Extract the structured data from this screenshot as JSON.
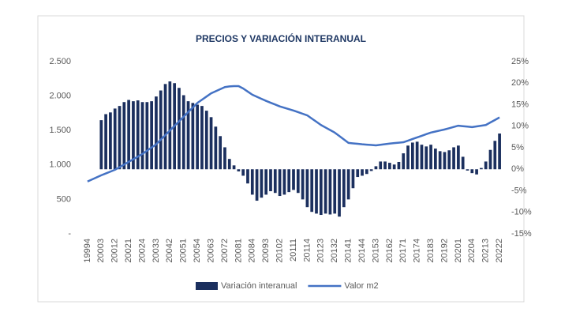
{
  "chart_data": {
    "type": "combo",
    "title": "PRECIOS Y VARIACIÓN INTERANUAL",
    "categories": [
      "19994",
      null,
      null,
      "20003",
      null,
      null,
      "20012",
      null,
      null,
      "20021",
      null,
      null,
      "20024",
      null,
      null,
      "20033",
      null,
      null,
      "20042",
      null,
      null,
      "20051",
      null,
      null,
      "20054",
      null,
      null,
      "20063",
      null,
      null,
      "20072",
      null,
      null,
      "20081",
      null,
      null,
      "20084",
      null,
      null,
      "20093",
      null,
      null,
      "20102",
      null,
      null,
      "20111",
      null,
      null,
      "20114",
      null,
      null,
      "20123",
      null,
      null,
      "20132",
      null,
      null,
      "20141",
      null,
      null,
      "20144",
      null,
      null,
      "20153",
      null,
      null,
      "20162",
      null,
      null,
      "20171",
      null,
      null,
      "20174",
      null,
      null,
      "20183",
      null,
      null,
      "20192",
      null,
      null,
      "20201",
      null,
      null,
      "20204",
      null,
      null,
      "20213",
      null,
      null,
      "20222"
    ],
    "series": [
      {
        "name": "Variación interanual",
        "type": "bar",
        "axis": "y2",
        "color": "#1b2f5e",
        "values": [
          null,
          null,
          null,
          11.4,
          12.8,
          13.2,
          14.1,
          14.7,
          15.6,
          16.1,
          15.8,
          16.0,
          15.6,
          15.6,
          15.8,
          16.9,
          18.3,
          19.8,
          20.4,
          20.0,
          18.9,
          17.2,
          15.8,
          15.4,
          15.0,
          14.7,
          13.6,
          12.1,
          9.9,
          7.7,
          5.1,
          2.4,
          0.9,
          -0.5,
          -1.5,
          -3.3,
          -5.9,
          -7.3,
          -6.6,
          -5.9,
          -5.1,
          -5.5,
          -6.2,
          -5.9,
          -5.3,
          -4.8,
          -5.5,
          -7.0,
          -8.8,
          -9.9,
          -10.3,
          -10.6,
          -10.3,
          -10.5,
          -10.3,
          -11.0,
          -8.8,
          -7.0,
          -4.4,
          -1.8,
          -1.5,
          -1.1,
          -0.4,
          0.7,
          1.8,
          1.8,
          1.5,
          1.1,
          1.7,
          3.7,
          5.5,
          6.2,
          6.4,
          5.7,
          5.3,
          5.7,
          4.8,
          4.2,
          4.0,
          4.4,
          5.1,
          5.5,
          2.9,
          -0.3,
          -0.9,
          -1.2,
          0.3,
          1.8,
          4.5,
          6.6,
          8.3
        ]
      },
      {
        "name": "Valor m2",
        "type": "line",
        "color": "#4472c4",
        "values": [
          760,
          790,
          820,
          850,
          877,
          903,
          930,
          968,
          1006,
          1045,
          1083,
          1121,
          1160,
          1207,
          1253,
          1300,
          1367,
          1433,
          1500,
          1567,
          1633,
          1700,
          1767,
          1833,
          1900,
          1947,
          1993,
          2040,
          2070,
          2100,
          2130,
          2140,
          2145,
          2145,
          2110,
          2065,
          2020,
          1990,
          1960,
          1930,
          1903,
          1877,
          1850,
          1830,
          1810,
          1790,
          1767,
          1743,
          1720,
          1673,
          1627,
          1580,
          1543,
          1507,
          1470,
          1420,
          1370,
          1320,
          1313,
          1307,
          1300,
          1295,
          1290,
          1285,
          1293,
          1302,
          1310,
          1317,
          1323,
          1330,
          1353,
          1377,
          1400,
          1423,
          1447,
          1470,
          1485,
          1500,
          1515,
          1533,
          1552,
          1570,
          1563,
          1557,
          1550,
          1560,
          1570,
          1580,
          1617,
          1653,
          1690
        ]
      }
    ],
    "ylim": [
      0,
      2500
    ],
    "yticks": [
      {
        "value": 0,
        "label": "-"
      },
      500,
      {
        "value": 1000,
        "label": "1.000"
      },
      {
        "value": 1500,
        "label": "1.500"
      },
      {
        "value": 2000,
        "label": "2.000"
      },
      {
        "value": 2500,
        "label": "2.500"
      }
    ],
    "y2lim": [
      -15,
      25
    ],
    "y2ticks": [
      {
        "value": -15,
        "label": "-15%"
      },
      {
        "value": -10,
        "label": "-10%"
      },
      {
        "value": -5,
        "label": "-5%"
      },
      {
        "value": 0,
        "label": "0%"
      },
      {
        "value": 5,
        "label": "5%"
      },
      {
        "value": 10,
        "label": "10%"
      },
      {
        "value": 15,
        "label": "15%"
      },
      {
        "value": 20,
        "label": "20%"
      },
      {
        "value": 25,
        "label": "25%"
      }
    ],
    "grid": false,
    "legend": "bottom"
  }
}
